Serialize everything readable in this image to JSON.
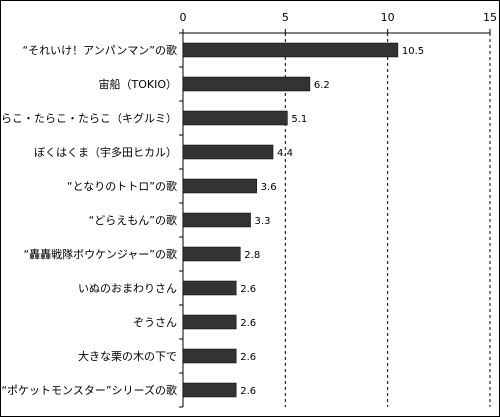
{
  "chart_data": {
    "type": "bar",
    "orientation": "horizontal",
    "title": "",
    "xlabel": "",
    "ylabel": "",
    "xlim": [
      0,
      15
    ],
    "xticks": [
      0,
      5,
      10,
      15
    ],
    "grid": "dashed vertical",
    "bar_color": "#333333",
    "categories": [
      "“それいけ！アンパンマン”の歌",
      "宙船（TOKIO）",
      "たらこ・たらこ・たらこ（キグルミ）",
      "ぼくはくま（宇多田ヒカル）",
      "“となりのトトロ”の歌",
      "“どらえもん”の歌",
      "“轟轟戦隊ボウケンジャー”の歌",
      "いぬのおまわりさん",
      "ぞうさん",
      "大きな栗の木の下で",
      "“ポケットモンスター”シリーズの歌"
    ],
    "values": [
      10.5,
      6.2,
      5.1,
      4.4,
      3.6,
      3.3,
      2.8,
      2.6,
      2.6,
      2.6,
      2.6
    ],
    "value_labels": [
      "10.5",
      "6.2",
      "5.1",
      "4.4",
      "3.6",
      "3.3",
      "2.8",
      "2.6",
      "2.6",
      "2.6",
      "2.6"
    ]
  }
}
